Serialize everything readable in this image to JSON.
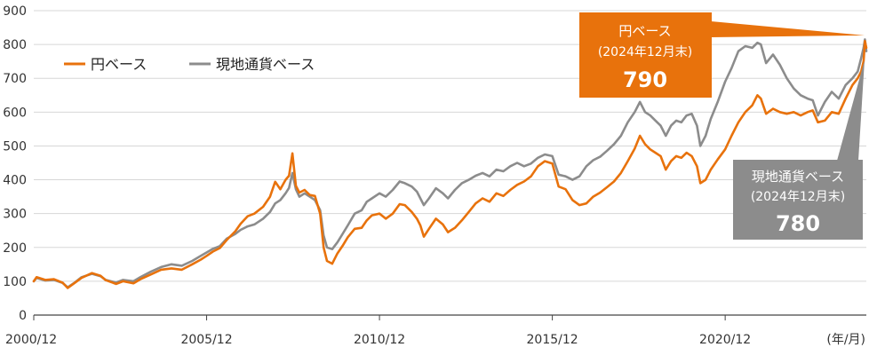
{
  "chart_data": {
    "type": "line",
    "title": "",
    "xlabel": "",
    "ylabel": "",
    "x_unit_label": "(年/月)",
    "ylim": [
      0,
      900
    ],
    "y_ticks": [
      0,
      100,
      200,
      300,
      400,
      500,
      600,
      700,
      800,
      900
    ],
    "x_range": [
      2000.917,
      2025.0
    ],
    "x_ticks": [
      {
        "label": "2000/12",
        "value": 2000.917
      },
      {
        "label": "2005/12",
        "value": 2005.917
      },
      {
        "label": "2010/12",
        "value": 2010.917
      },
      {
        "label": "2015/12",
        "value": 2015.917
      },
      {
        "label": "2020/12",
        "value": 2020.917
      }
    ],
    "grid": "horizontal",
    "legend": "top-left",
    "series": [
      {
        "name": "円ベース",
        "color": "#E8720C",
        "points": [
          [
            2000.917,
            100
          ],
          [
            2001.0,
            112
          ],
          [
            2001.25,
            104
          ],
          [
            2001.5,
            106
          ],
          [
            2001.75,
            96
          ],
          [
            2001.9,
            80
          ],
          [
            2002.1,
            95
          ],
          [
            2002.3,
            110
          ],
          [
            2002.6,
            124
          ],
          [
            2002.85,
            116
          ],
          [
            2003.0,
            103
          ],
          [
            2003.3,
            92
          ],
          [
            2003.5,
            100
          ],
          [
            2003.8,
            94
          ],
          [
            2004.0,
            106
          ],
          [
            2004.3,
            120
          ],
          [
            2004.6,
            134
          ],
          [
            2004.9,
            138
          ],
          [
            2005.2,
            134
          ],
          [
            2005.5,
            150
          ],
          [
            2005.75,
            164
          ],
          [
            2005.917,
            175
          ],
          [
            2006.1,
            188
          ],
          [
            2006.3,
            198
          ],
          [
            2006.5,
            222
          ],
          [
            2006.75,
            248
          ],
          [
            2006.9,
            270
          ],
          [
            2007.1,
            292
          ],
          [
            2007.3,
            300
          ],
          [
            2007.55,
            320
          ],
          [
            2007.75,
            350
          ],
          [
            2007.9,
            394
          ],
          [
            2008.05,
            372
          ],
          [
            2008.2,
            400
          ],
          [
            2008.3,
            412
          ],
          [
            2008.4,
            478
          ],
          [
            2008.5,
            382
          ],
          [
            2008.6,
            362
          ],
          [
            2008.75,
            370
          ],
          [
            2008.9,
            355
          ],
          [
            2009.05,
            352
          ],
          [
            2009.2,
            300
          ],
          [
            2009.3,
            200
          ],
          [
            2009.4,
            160
          ],
          [
            2009.55,
            152
          ],
          [
            2009.7,
            182
          ],
          [
            2009.85,
            205
          ],
          [
            2010.0,
            230
          ],
          [
            2010.2,
            255
          ],
          [
            2010.4,
            258
          ],
          [
            2010.55,
            280
          ],
          [
            2010.7,
            295
          ],
          [
            2010.917,
            300
          ],
          [
            2011.1,
            285
          ],
          [
            2011.3,
            300
          ],
          [
            2011.5,
            328
          ],
          [
            2011.65,
            325
          ],
          [
            2011.85,
            305
          ],
          [
            2012.0,
            285
          ],
          [
            2012.1,
            265
          ],
          [
            2012.2,
            232
          ],
          [
            2012.35,
            255
          ],
          [
            2012.55,
            285
          ],
          [
            2012.75,
            268
          ],
          [
            2012.9,
            245
          ],
          [
            2013.1,
            258
          ],
          [
            2013.3,
            280
          ],
          [
            2013.5,
            305
          ],
          [
            2013.7,
            330
          ],
          [
            2013.9,
            345
          ],
          [
            2014.1,
            335
          ],
          [
            2014.3,
            360
          ],
          [
            2014.5,
            352
          ],
          [
            2014.7,
            370
          ],
          [
            2014.9,
            385
          ],
          [
            2015.1,
            395
          ],
          [
            2015.3,
            410
          ],
          [
            2015.5,
            440
          ],
          [
            2015.7,
            455
          ],
          [
            2015.917,
            448
          ],
          [
            2016.1,
            380
          ],
          [
            2016.3,
            372
          ],
          [
            2016.5,
            340
          ],
          [
            2016.7,
            325
          ],
          [
            2016.9,
            330
          ],
          [
            2017.1,
            350
          ],
          [
            2017.3,
            362
          ],
          [
            2017.5,
            378
          ],
          [
            2017.7,
            395
          ],
          [
            2017.9,
            420
          ],
          [
            2018.1,
            455
          ],
          [
            2018.3,
            492
          ],
          [
            2018.45,
            530
          ],
          [
            2018.6,
            505
          ],
          [
            2018.75,
            490
          ],
          [
            2018.9,
            480
          ],
          [
            2019.05,
            470
          ],
          [
            2019.2,
            430
          ],
          [
            2019.35,
            455
          ],
          [
            2019.5,
            470
          ],
          [
            2019.65,
            465
          ],
          [
            2019.8,
            480
          ],
          [
            2019.95,
            470
          ],
          [
            2020.1,
            440
          ],
          [
            2020.2,
            390
          ],
          [
            2020.35,
            400
          ],
          [
            2020.5,
            430
          ],
          [
            2020.7,
            460
          ],
          [
            2020.917,
            490
          ],
          [
            2021.1,
            530
          ],
          [
            2021.3,
            570
          ],
          [
            2021.5,
            600
          ],
          [
            2021.7,
            620
          ],
          [
            2021.85,
            650
          ],
          [
            2021.95,
            640
          ],
          [
            2022.1,
            595
          ],
          [
            2022.3,
            610
          ],
          [
            2022.5,
            600
          ],
          [
            2022.7,
            595
          ],
          [
            2022.9,
            600
          ],
          [
            2023.1,
            590
          ],
          [
            2023.3,
            600
          ],
          [
            2023.45,
            605
          ],
          [
            2023.6,
            570
          ],
          [
            2023.8,
            575
          ],
          [
            2024.0,
            600
          ],
          [
            2024.2,
            595
          ],
          [
            2024.4,
            640
          ],
          [
            2024.6,
            680
          ],
          [
            2024.75,
            700
          ],
          [
            2024.85,
            720
          ],
          [
            2024.92,
            750
          ],
          [
            2024.96,
            810
          ],
          [
            2025.0,
            790
          ]
        ]
      },
      {
        "name": "現地通貨ベース",
        "color": "#8C8C8C",
        "points": [
          [
            2000.917,
            100
          ],
          [
            2001.0,
            110
          ],
          [
            2001.25,
            102
          ],
          [
            2001.5,
            104
          ],
          [
            2001.75,
            95
          ],
          [
            2001.9,
            82
          ],
          [
            2002.1,
            96
          ],
          [
            2002.3,
            112
          ],
          [
            2002.6,
            122
          ],
          [
            2002.85,
            115
          ],
          [
            2003.0,
            104
          ],
          [
            2003.3,
            96
          ],
          [
            2003.5,
            104
          ],
          [
            2003.8,
            100
          ],
          [
            2004.0,
            112
          ],
          [
            2004.3,
            128
          ],
          [
            2004.6,
            142
          ],
          [
            2004.9,
            150
          ],
          [
            2005.2,
            146
          ],
          [
            2005.5,
            160
          ],
          [
            2005.75,
            175
          ],
          [
            2005.917,
            185
          ],
          [
            2006.1,
            196
          ],
          [
            2006.3,
            204
          ],
          [
            2006.5,
            226
          ],
          [
            2006.75,
            240
          ],
          [
            2006.9,
            252
          ],
          [
            2007.1,
            262
          ],
          [
            2007.3,
            268
          ],
          [
            2007.55,
            285
          ],
          [
            2007.75,
            305
          ],
          [
            2007.9,
            330
          ],
          [
            2008.05,
            340
          ],
          [
            2008.2,
            360
          ],
          [
            2008.3,
            376
          ],
          [
            2008.4,
            420
          ],
          [
            2008.5,
            372
          ],
          [
            2008.6,
            350
          ],
          [
            2008.75,
            360
          ],
          [
            2008.9,
            350
          ],
          [
            2009.05,
            340
          ],
          [
            2009.2,
            310
          ],
          [
            2009.3,
            235
          ],
          [
            2009.4,
            200
          ],
          [
            2009.55,
            195
          ],
          [
            2009.7,
            215
          ],
          [
            2009.85,
            240
          ],
          [
            2010.0,
            265
          ],
          [
            2010.2,
            300
          ],
          [
            2010.4,
            310
          ],
          [
            2010.55,
            335
          ],
          [
            2010.7,
            345
          ],
          [
            2010.917,
            360
          ],
          [
            2011.1,
            350
          ],
          [
            2011.3,
            370
          ],
          [
            2011.5,
            395
          ],
          [
            2011.65,
            390
          ],
          [
            2011.85,
            380
          ],
          [
            2012.0,
            365
          ],
          [
            2012.1,
            345
          ],
          [
            2012.2,
            325
          ],
          [
            2012.35,
            345
          ],
          [
            2012.55,
            375
          ],
          [
            2012.75,
            360
          ],
          [
            2012.9,
            345
          ],
          [
            2013.1,
            370
          ],
          [
            2013.3,
            390
          ],
          [
            2013.5,
            400
          ],
          [
            2013.7,
            412
          ],
          [
            2013.9,
            420
          ],
          [
            2014.1,
            410
          ],
          [
            2014.3,
            430
          ],
          [
            2014.5,
            425
          ],
          [
            2014.7,
            440
          ],
          [
            2014.9,
            450
          ],
          [
            2015.1,
            440
          ],
          [
            2015.3,
            448
          ],
          [
            2015.5,
            465
          ],
          [
            2015.7,
            475
          ],
          [
            2015.917,
            470
          ],
          [
            2016.1,
            415
          ],
          [
            2016.3,
            410
          ],
          [
            2016.5,
            400
          ],
          [
            2016.7,
            410
          ],
          [
            2016.9,
            440
          ],
          [
            2017.1,
            458
          ],
          [
            2017.3,
            468
          ],
          [
            2017.5,
            486
          ],
          [
            2017.7,
            505
          ],
          [
            2017.9,
            530
          ],
          [
            2018.1,
            570
          ],
          [
            2018.3,
            600
          ],
          [
            2018.45,
            630
          ],
          [
            2018.6,
            600
          ],
          [
            2018.75,
            590
          ],
          [
            2018.9,
            575
          ],
          [
            2019.05,
            560
          ],
          [
            2019.2,
            530
          ],
          [
            2019.35,
            560
          ],
          [
            2019.5,
            575
          ],
          [
            2019.65,
            570
          ],
          [
            2019.8,
            590
          ],
          [
            2019.95,
            595
          ],
          [
            2020.1,
            560
          ],
          [
            2020.2,
            500
          ],
          [
            2020.35,
            530
          ],
          [
            2020.5,
            580
          ],
          [
            2020.7,
            630
          ],
          [
            2020.917,
            690
          ],
          [
            2021.1,
            730
          ],
          [
            2021.3,
            780
          ],
          [
            2021.5,
            795
          ],
          [
            2021.7,
            790
          ],
          [
            2021.85,
            805
          ],
          [
            2021.95,
            800
          ],
          [
            2022.1,
            745
          ],
          [
            2022.3,
            770
          ],
          [
            2022.5,
            740
          ],
          [
            2022.7,
            700
          ],
          [
            2022.9,
            670
          ],
          [
            2023.1,
            650
          ],
          [
            2023.3,
            640
          ],
          [
            2023.45,
            635
          ],
          [
            2023.6,
            590
          ],
          [
            2023.8,
            630
          ],
          [
            2024.0,
            660
          ],
          [
            2024.2,
            640
          ],
          [
            2024.4,
            680
          ],
          [
            2024.6,
            700
          ],
          [
            2024.75,
            720
          ],
          [
            2024.85,
            760
          ],
          [
            2024.92,
            790
          ],
          [
            2024.96,
            815
          ],
          [
            2025.0,
            780
          ]
        ]
      }
    ],
    "callouts": [
      {
        "series": "円ベース",
        "title": "円ベース",
        "subtitle": "(2024年12月末)",
        "value": "790",
        "color": "#E8720C"
      },
      {
        "series": "現地通貨ベース",
        "title": "現地通貨ベース",
        "subtitle": "(2024年12月末)",
        "value": "780",
        "color": "#8C8C8C"
      }
    ]
  }
}
